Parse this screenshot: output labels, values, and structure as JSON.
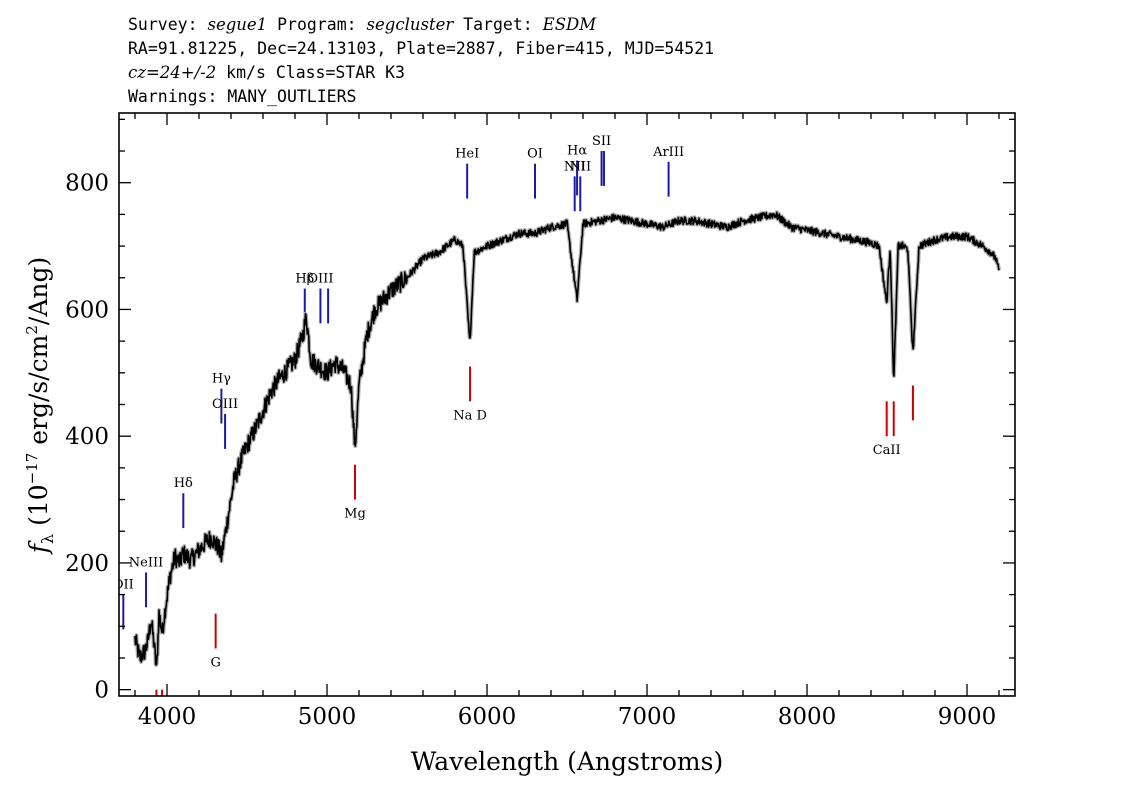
{
  "header": {
    "line1": {
      "survey_label": "Survey:",
      "survey": "segue1",
      "program_label": "Program:",
      "program": "segcluster",
      "target_label": "Target:",
      "target": "ESDM"
    },
    "line2": "RA=91.81225, Dec=24.13103, Plate=2887, Fiber=415, MJD=54521",
    "line3": {
      "cz": "cz=24+/-2",
      "rest": "km/s Class=STAR K3"
    },
    "line4": "Warnings: MANY_OUTLIERS"
  },
  "chart_data": {
    "type": "line",
    "xlabel": "Wavelength (Angstroms)",
    "ylabel": "f_λ (10^-17 erg/s/cm^2/Ang)",
    "xlim": [
      3700,
      9300
    ],
    "ylim": [
      -10,
      910
    ],
    "x_ticks": [
      4000,
      5000,
      6000,
      7000,
      8000,
      9000
    ],
    "y_ticks": [
      0,
      200,
      400,
      600,
      800
    ],
    "grid": false,
    "colors": {
      "spectrum": "#000000",
      "error_band": "#b0b0b0",
      "emission": "#1a1aa8",
      "absorption": "#cc0000",
      "frame": "#000000"
    },
    "spectrum": {
      "x": [
        3800,
        3830,
        3860,
        3880,
        3900,
        3920,
        3935,
        3950,
        3970,
        3990,
        4020,
        4050,
        4080,
        4100,
        4150,
        4200,
        4250,
        4280,
        4300,
        4320,
        4340,
        4380,
        4420,
        4460,
        4500,
        4550,
        4600,
        4650,
        4700,
        4750,
        4800,
        4850,
        4870,
        4900,
        4950,
        5000,
        5050,
        5100,
        5150,
        5175,
        5200,
        5250,
        5300,
        5400,
        5500,
        5600,
        5700,
        5800,
        5850,
        5893,
        5920,
        6000,
        6100,
        6200,
        6300,
        6400,
        6500,
        6563,
        6600,
        6700,
        6800,
        6900,
        7000,
        7100,
        7200,
        7300,
        7400,
        7500,
        7600,
        7700,
        7800,
        7900,
        8000,
        8100,
        8200,
        8300,
        8400,
        8450,
        8498,
        8520,
        8542,
        8570,
        8600,
        8630,
        8662,
        8700,
        8800,
        8900,
        9000,
        9100,
        9150,
        9180,
        9200
      ],
      "y": [
        80,
        50,
        60,
        75,
        110,
        70,
        30,
        120,
        90,
        130,
        180,
        210,
        200,
        215,
        205,
        220,
        235,
        240,
        230,
        225,
        210,
        270,
        330,
        360,
        385,
        410,
        440,
        470,
        490,
        505,
        520,
        560,
        590,
        520,
        510,
        500,
        515,
        505,
        480,
        380,
        480,
        560,
        600,
        630,
        650,
        680,
        690,
        710,
        700,
        545,
        690,
        700,
        710,
        720,
        720,
        730,
        735,
        615,
        735,
        740,
        745,
        740,
        735,
        730,
        740,
        740,
        735,
        730,
        740,
        745,
        750,
        730,
        725,
        720,
        715,
        710,
        705,
        700,
        610,
        700,
        485,
        700,
        700,
        695,
        530,
        700,
        710,
        715,
        715,
        700,
        690,
        680,
        660
      ]
    },
    "lines": [
      {
        "label": "OII",
        "wave": 3727,
        "kind": "emission",
        "y_low": 95,
        "y_high": 150
      },
      {
        "label": "NeIII",
        "wave": 3869,
        "kind": "emission",
        "y_low": 130,
        "y_high": 185
      },
      {
        "label": "Hδ",
        "wave": 4102,
        "kind": "emission",
        "y_low": 255,
        "y_high": 310
      },
      {
        "label": "Hγ",
        "wave": 4340,
        "kind": "emission",
        "y_low": 420,
        "y_high": 475
      },
      {
        "label": "OIII",
        "wave": 4363,
        "kind": "emission",
        "y_low": 380,
        "y_high": 435
      },
      {
        "label": "Hβ",
        "wave": 4861,
        "kind": "emission",
        "y_low": 578,
        "y_high": 633
      },
      {
        "label": "OIII",
        "wave": 4959,
        "kind": "emission",
        "y_low": 578,
        "y_high": 633
      },
      {
        "label": "",
        "wave": 5007,
        "kind": "emission",
        "y_low": 578,
        "y_high": 633
      },
      {
        "label": "HeI",
        "wave": 5876,
        "kind": "emission",
        "y_low": 775,
        "y_high": 830
      },
      {
        "label": "OI",
        "wave": 6300,
        "kind": "emission",
        "y_low": 775,
        "y_high": 830
      },
      {
        "label": "NII",
        "wave": 6548,
        "kind": "emission",
        "y_low": 755,
        "y_high": 810
      },
      {
        "label": "Hα",
        "wave": 6563,
        "kind": "emission",
        "y_low": 780,
        "y_high": 835
      },
      {
        "label": "NII",
        "wave": 6583,
        "kind": "emission",
        "y_low": 755,
        "y_high": 810
      },
      {
        "label": "SII",
        "wave": 6716,
        "kind": "emission",
        "y_low": 795,
        "y_high": 850
      },
      {
        "label": "",
        "wave": 6731,
        "kind": "emission",
        "y_low": 795,
        "y_high": 850
      },
      {
        "label": "ArIII",
        "wave": 7135,
        "kind": "emission",
        "y_low": 778,
        "y_high": 833
      },
      {
        "label": "",
        "wave": 3934,
        "kind": "absorption",
        "y_low": -20,
        "y_high": 0
      },
      {
        "label": "",
        "wave": 3969,
        "kind": "absorption",
        "y_low": -20,
        "y_high": 0
      },
      {
        "label": "G",
        "wave": 4304,
        "kind": "absorption",
        "y_low": 65,
        "y_high": 120
      },
      {
        "label": "Mg",
        "wave": 5175,
        "kind": "absorption",
        "y_low": 300,
        "y_high": 355
      },
      {
        "label": "Na D",
        "wave": 5894,
        "kind": "absorption",
        "y_low": 455,
        "y_high": 510
      },
      {
        "label": "CaII",
        "wave": 8498,
        "kind": "absorption",
        "y_low": 400,
        "y_high": 455
      },
      {
        "label": "",
        "wave": 8542,
        "kind": "absorption",
        "y_low": 400,
        "y_high": 455
      },
      {
        "label": "",
        "wave": 8662,
        "kind": "absorption",
        "y_low": 425,
        "y_high": 480
      }
    ]
  }
}
